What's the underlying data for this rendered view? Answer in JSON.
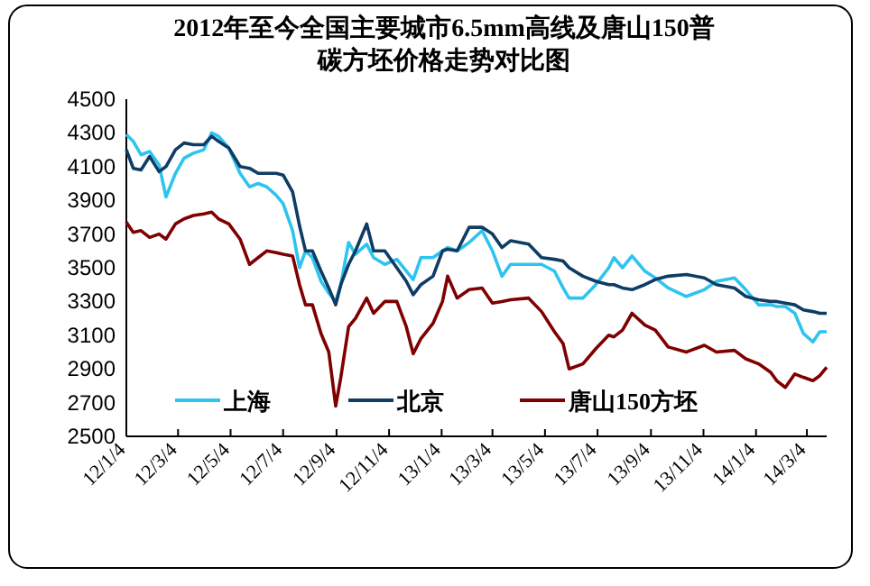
{
  "chart_data": {
    "type": "line",
    "title": "2012年至今全国主要城市6.5mm高线及唐山150普碳方坯价格走势对比图",
    "x": [
      "2012-01-04",
      "2012-01-12",
      "2012-01-21",
      "2012-01-31",
      "2012-02-11",
      "2012-02-19",
      "2012-03-01",
      "2012-03-11",
      "2012-03-22",
      "2012-04-03",
      "2012-04-12",
      "2012-04-20",
      "2012-05-02",
      "2012-05-15",
      "2012-05-26",
      "2012-06-05",
      "2012-06-15",
      "2012-06-26",
      "2012-07-04",
      "2012-07-15",
      "2012-07-23",
      "2012-07-30",
      "2012-08-07",
      "2012-08-17",
      "2012-08-26",
      "2012-09-03",
      "2012-09-09",
      "2012-09-18",
      "2012-09-26",
      "2012-10-09",
      "2012-10-17",
      "2012-10-30",
      "2012-11-13",
      "2012-11-24",
      "2012-12-02",
      "2012-12-11",
      "2012-12-25",
      "2013-01-05",
      "2013-01-11",
      "2013-01-22",
      "2013-02-05",
      "2013-02-20",
      "2013-03-04",
      "2013-03-15",
      "2013-03-25",
      "2013-04-15",
      "2013-04-30",
      "2013-05-15",
      "2013-05-25",
      "2013-06-01",
      "2013-06-17",
      "2013-07-02",
      "2013-07-17",
      "2013-07-23",
      "2013-08-02",
      "2013-08-13",
      "2013-08-28",
      "2013-09-09",
      "2013-09-24",
      "2013-10-15",
      "2013-11-05",
      "2013-11-19",
      "2013-12-10",
      "2013-12-23",
      "2014-01-07",
      "2014-01-21",
      "2014-01-28",
      "2014-02-07",
      "2014-02-18",
      "2014-02-28",
      "2014-03-11",
      "2014-03-19",
      "2014-03-27"
    ],
    "series": [
      {
        "name": "上海",
        "color": "#2ec4f0",
        "values": [
          4290,
          4250,
          4170,
          4190,
          4110,
          3920,
          4060,
          4150,
          4180,
          4200,
          4300,
          4280,
          4210,
          4060,
          3980,
          4000,
          3980,
          3930,
          3880,
          3720,
          3500,
          3600,
          3560,
          3420,
          3350,
          3300,
          3400,
          3650,
          3580,
          3640,
          3560,
          3520,
          3550,
          3480,
          3430,
          3560,
          3560,
          3600,
          3620,
          3600,
          3650,
          3720,
          3600,
          3450,
          3520,
          3520,
          3520,
          3480,
          3380,
          3320,
          3320,
          3400,
          3500,
          3560,
          3500,
          3570,
          3480,
          3440,
          3380,
          3330,
          3370,
          3420,
          3440,
          3370,
          3280,
          3280,
          3270,
          3270,
          3230,
          3110,
          3060,
          3120,
          3120
        ]
      },
      {
        "name": "北京",
        "color": "#0f3c64",
        "values": [
          4200,
          4090,
          4080,
          4160,
          4070,
          4100,
          4200,
          4240,
          4230,
          4230,
          4280,
          4250,
          4210,
          4100,
          4090,
          4060,
          4060,
          4060,
          4050,
          3950,
          3750,
          3600,
          3600,
          3480,
          3380,
          3280,
          3400,
          3520,
          3600,
          3760,
          3600,
          3600,
          3500,
          3420,
          3340,
          3400,
          3450,
          3600,
          3610,
          3600,
          3740,
          3740,
          3700,
          3620,
          3660,
          3640,
          3560,
          3550,
          3540,
          3500,
          3450,
          3420,
          3400,
          3400,
          3380,
          3370,
          3400,
          3430,
          3450,
          3460,
          3440,
          3400,
          3380,
          3330,
          3310,
          3300,
          3300,
          3290,
          3280,
          3250,
          3240,
          3230,
          3230
        ]
      },
      {
        "name": "唐山150方坯",
        "color": "#7f0000",
        "values": [
          3770,
          3710,
          3720,
          3680,
          3700,
          3670,
          3760,
          3790,
          3810,
          3820,
          3830,
          3790,
          3760,
          3670,
          3520,
          3560,
          3600,
          3590,
          3580,
          3570,
          3400,
          3280,
          3280,
          3110,
          3000,
          2680,
          2850,
          3150,
          3200,
          3320,
          3230,
          3300,
          3300,
          3150,
          2990,
          3080,
          3170,
          3300,
          3450,
          3320,
          3370,
          3380,
          3290,
          3300,
          3310,
          3320,
          3240,
          3120,
          3050,
          2900,
          2930,
          3020,
          3100,
          3090,
          3130,
          3230,
          3160,
          3130,
          3030,
          3000,
          3040,
          3000,
          3010,
          2960,
          2930,
          2880,
          2830,
          2790,
          2870,
          2850,
          2830,
          2860,
          2910
        ]
      }
    ],
    "xlim": [
      "2012-01-04",
      "2014-03-27"
    ],
    "xticks": [
      {
        "value": "2012-01-04",
        "label": "12/1/4"
      },
      {
        "value": "2012-03-04",
        "label": "12/3/4"
      },
      {
        "value": "2012-05-04",
        "label": "12/5/4"
      },
      {
        "value": "2012-07-04",
        "label": "12/7/4"
      },
      {
        "value": "2012-09-04",
        "label": "12/9/4"
      },
      {
        "value": "2012-11-04",
        "label": "12/11/4"
      },
      {
        "value": "2013-01-04",
        "label": "13/1/4"
      },
      {
        "value": "2013-03-04",
        "label": "13/3/4"
      },
      {
        "value": "2013-05-04",
        "label": "13/5/4"
      },
      {
        "value": "2013-07-04",
        "label": "13/7/4"
      },
      {
        "value": "2013-09-04",
        "label": "13/9/4"
      },
      {
        "value": "2013-11-04",
        "label": "13/11/4"
      },
      {
        "value": "2014-01-04",
        "label": "14/1/4"
      },
      {
        "value": "2014-03-04",
        "label": "14/3/4"
      }
    ],
    "ylim": [
      2500,
      4500
    ],
    "yticks": [
      2500,
      2700,
      2900,
      3100,
      3300,
      3500,
      3700,
      3900,
      4100,
      4300,
      4500
    ],
    "grid": false,
    "legend": "bottom",
    "marker": "none",
    "line_style": "solid"
  }
}
